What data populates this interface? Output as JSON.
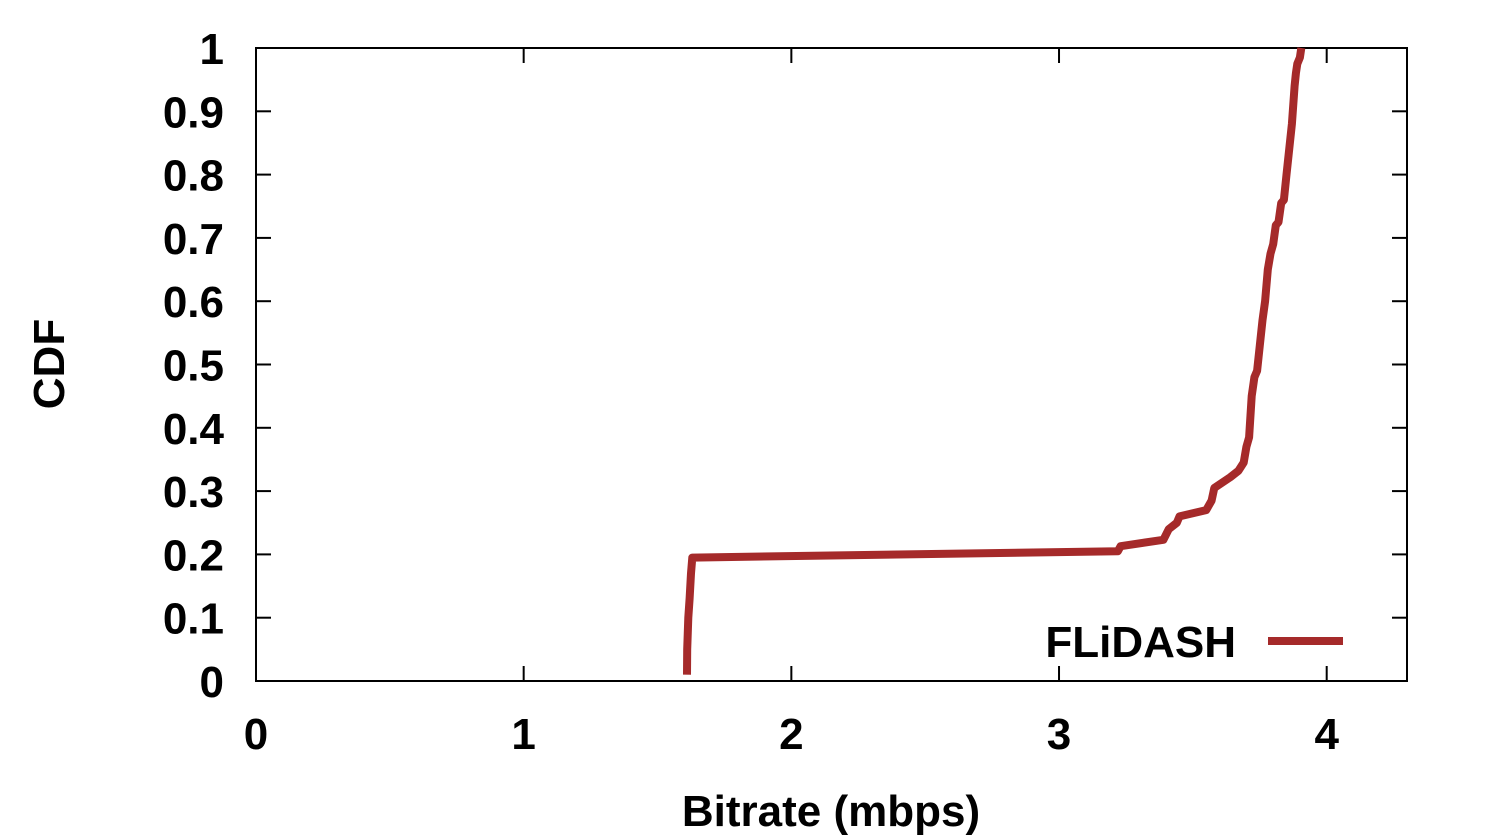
{
  "chart_data": {
    "type": "line",
    "title": "",
    "xlabel": "Bitrate (mbps)",
    "ylabel": "CDF",
    "xlim": [
      0,
      4.3
    ],
    "ylim": [
      0,
      1
    ],
    "xticks": [
      "0",
      "1",
      "2",
      "3",
      "4"
    ],
    "yticks": [
      "0",
      "0.1",
      "0.2",
      "0.3",
      "0.4",
      "0.5",
      "0.6",
      "0.7",
      "0.8",
      "0.9",
      "1"
    ],
    "grid": false,
    "legend_position": "bottom-right",
    "series": [
      {
        "name": "FLiDASH",
        "color": "#a52a2a",
        "x": [
          1.61,
          1.611,
          1.615,
          1.62,
          1.625,
          1.63,
          3.22,
          3.23,
          3.39,
          3.41,
          3.44,
          3.45,
          3.55,
          3.57,
          3.58,
          3.64,
          3.67,
          3.69,
          3.7,
          3.71,
          3.72,
          3.73,
          3.74,
          3.75,
          3.76,
          3.77,
          3.78,
          3.79,
          3.8,
          3.81,
          3.82,
          3.83,
          3.84,
          3.85,
          3.86,
          3.87,
          3.88,
          3.885,
          3.89,
          3.9,
          3.905
        ],
        "y": [
          0.01,
          0.05,
          0.1,
          0.13,
          0.17,
          0.195,
          0.205,
          0.213,
          0.223,
          0.24,
          0.25,
          0.26,
          0.27,
          0.285,
          0.305,
          0.322,
          0.332,
          0.345,
          0.37,
          0.385,
          0.45,
          0.48,
          0.49,
          0.53,
          0.57,
          0.6,
          0.65,
          0.675,
          0.69,
          0.72,
          0.725,
          0.755,
          0.76,
          0.8,
          0.84,
          0.88,
          0.94,
          0.96,
          0.975,
          0.985,
          1.0
        ]
      }
    ]
  }
}
